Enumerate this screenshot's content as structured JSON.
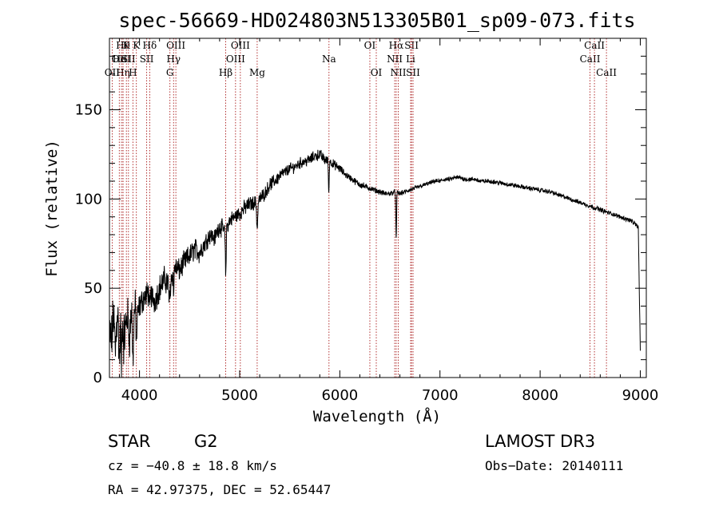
{
  "chart_data": {
    "type": "line",
    "title": "spec-56669-HD024803N513305B01_sp09-073.fits",
    "xlabel": "Wavelength (Å)",
    "ylabel": "Flux (relative)",
    "xlim": [
      3700,
      9060
    ],
    "ylim": [
      0,
      190
    ],
    "xticks": [
      4000,
      5000,
      6000,
      7000,
      8000,
      9000
    ],
    "yticks": [
      0,
      50,
      100,
      150
    ],
    "x_minor_step": 200,
    "y_minor_step": 10,
    "series_color": "#000000",
    "line_color": "#a00000",
    "spectrum": {
      "name": "flux",
      "x": [
        3700,
        3720,
        3740,
        3760,
        3780,
        3800,
        3820,
        3840,
        3860,
        3880,
        3900,
        3920,
        3940,
        3960,
        3980,
        4000,
        4050,
        4100,
        4150,
        4200,
        4250,
        4300,
        4350,
        4400,
        4450,
        4500,
        4550,
        4600,
        4650,
        4700,
        4750,
        4800,
        4850,
        4900,
        4950,
        5000,
        5050,
        5100,
        5150,
        5200,
        5250,
        5300,
        5350,
        5400,
        5450,
        5500,
        5550,
        5600,
        5650,
        5700,
        5750,
        5800,
        5850,
        5900,
        5950,
        6000,
        6050,
        6100,
        6150,
        6200,
        6250,
        6300,
        6350,
        6400,
        6450,
        6500,
        6550,
        6600,
        6650,
        6700,
        6750,
        6800,
        6850,
        6900,
        6950,
        7000,
        7050,
        7100,
        7150,
        7200,
        7250,
        7300,
        7350,
        7400,
        7450,
        7500,
        7600,
        7700,
        7800,
        7900,
        8000,
        8100,
        8200,
        8300,
        8400,
        8500,
        8600,
        8700,
        8800,
        8900,
        8950,
        8980,
        9000
      ],
      "y": [
        25,
        20,
        35,
        15,
        40,
        10,
        45,
        20,
        28,
        35,
        22,
        38,
        30,
        42,
        35,
        40,
        45,
        48,
        43,
        50,
        55,
        52,
        62,
        60,
        65,
        68,
        72,
        70,
        75,
        80,
        78,
        85,
        82,
        88,
        90,
        92,
        95,
        97,
        98,
        100,
        103,
        108,
        110,
        113,
        115,
        117,
        118,
        120,
        121,
        122,
        124,
        125,
        122,
        121,
        119,
        117,
        114,
        112,
        110,
        108,
        107,
        106,
        105,
        104,
        103,
        103,
        104,
        103,
        104,
        105,
        106,
        107,
        108,
        109,
        110,
        110,
        111,
        111,
        112,
        112,
        111,
        111,
        111,
        110,
        110,
        110,
        109,
        108,
        107,
        106,
        105,
        104,
        102,
        100,
        98,
        96,
        94,
        92,
        90,
        88,
        86,
        84,
        15
      ],
      "noise": [
        10,
        12,
        11,
        14,
        12,
        12,
        10,
        12,
        10,
        10,
        9,
        9,
        8,
        7,
        6,
        6,
        6,
        6,
        6,
        6,
        6,
        6,
        5,
        5,
        5,
        5,
        5,
        5,
        4.5,
        4,
        4,
        4,
        4,
        3.5,
        3.5,
        3.5,
        3.5,
        3.5,
        3,
        3,
        3,
        3,
        3,
        3,
        2.5,
        2.5,
        2.5,
        2.5,
        2.5,
        2.5,
        2.5,
        2.5,
        2.5,
        2,
        2,
        2,
        1.5,
        1.5,
        1.5,
        1.5,
        1.5,
        1.2,
        1.2,
        1.2,
        1.2,
        1.2,
        1.2,
        1.2,
        1,
        1,
        1,
        1,
        1,
        1,
        1,
        1,
        1,
        1,
        1,
        1,
        1,
        1,
        1,
        1,
        1,
        1,
        1,
        1,
        1,
        1,
        1,
        1,
        1,
        1,
        1,
        1,
        1,
        1,
        1,
        1,
        1,
        1,
        0
      ],
      "absorption": [
        {
          "at": 3820,
          "depth": 40,
          "width": 5
        },
        {
          "at": 3934,
          "depth": 25,
          "width": 6
        },
        {
          "at": 3969,
          "depth": 20,
          "width": 6
        },
        {
          "at": 4102,
          "depth": 12,
          "width": 5
        },
        {
          "at": 4300,
          "depth": 10,
          "width": 8
        },
        {
          "at": 4341,
          "depth": 12,
          "width": 5
        },
        {
          "at": 4861,
          "depth": 25,
          "width": 6
        },
        {
          "at": 5175,
          "depth": 15,
          "width": 8
        },
        {
          "at": 5890,
          "depth": 18,
          "width": 5
        },
        {
          "at": 6563,
          "depth": 27,
          "width": 5
        }
      ]
    },
    "spectral_lines": [
      {
        "x": 3727,
        "label": "OII",
        "row": 3
      },
      {
        "x": 3798,
        "label": "OII",
        "row": 2
      },
      {
        "x": 3835,
        "label": "Hη",
        "row": 3
      },
      {
        "x": 3820,
        "label": "HeI",
        "row": 2
      },
      {
        "x": 3835,
        "label": "Hθ",
        "row": 1
      },
      {
        "x": 3869,
        "label": "K",
        "row": 1
      },
      {
        "x": 3890,
        "label": "SII",
        "row": 2
      },
      {
        "x": 3934,
        "label": "H",
        "row": 3
      },
      {
        "x": 3969,
        "label": "K",
        "row": 1
      },
      {
        "x": 4072,
        "label": "SII",
        "row": 2
      },
      {
        "x": 4102,
        "label": "Hδ",
        "row": 1
      },
      {
        "x": 4304,
        "label": "G",
        "row": 3
      },
      {
        "x": 4340,
        "label": "Hγ",
        "row": 2
      },
      {
        "x": 4363,
        "label": "OIII",
        "row": 1
      },
      {
        "x": 4861,
        "label": "Hβ",
        "row": 3
      },
      {
        "x": 4959,
        "label": "OIII",
        "row": 2
      },
      {
        "x": 5007,
        "label": "OIII",
        "row": 1
      },
      {
        "x": 5175,
        "label": "Mg",
        "row": 3
      },
      {
        "x": 5892,
        "label": "Na",
        "row": 2
      },
      {
        "x": 6300,
        "label": "OI",
        "row": 1
      },
      {
        "x": 6364,
        "label": "OI",
        "row": 3
      },
      {
        "x": 6548,
        "label": "NII",
        "row": 2
      },
      {
        "x": 6563,
        "label": "Hα",
        "row": 1
      },
      {
        "x": 6583,
        "label": "NII",
        "row": 3
      },
      {
        "x": 6707,
        "label": "Li",
        "row": 2
      },
      {
        "x": 6716,
        "label": "SII",
        "row": 1
      },
      {
        "x": 6731,
        "label": "SII",
        "row": 3
      },
      {
        "x": 8498,
        "label": "CaII",
        "row": 2
      },
      {
        "x": 8542,
        "label": "CaII",
        "row": 1
      },
      {
        "x": 8662,
        "label": "CaII",
        "row": 3
      }
    ]
  },
  "info": {
    "object_class": "STAR",
    "subclass": "G2",
    "survey": "LAMOST DR3",
    "redshift": "cz = −40.8 ± 18.8 km/s",
    "obs_date": "Obs−Date: 20140111",
    "coords": "RA =  42.97375, DEC =  52.65447"
  }
}
